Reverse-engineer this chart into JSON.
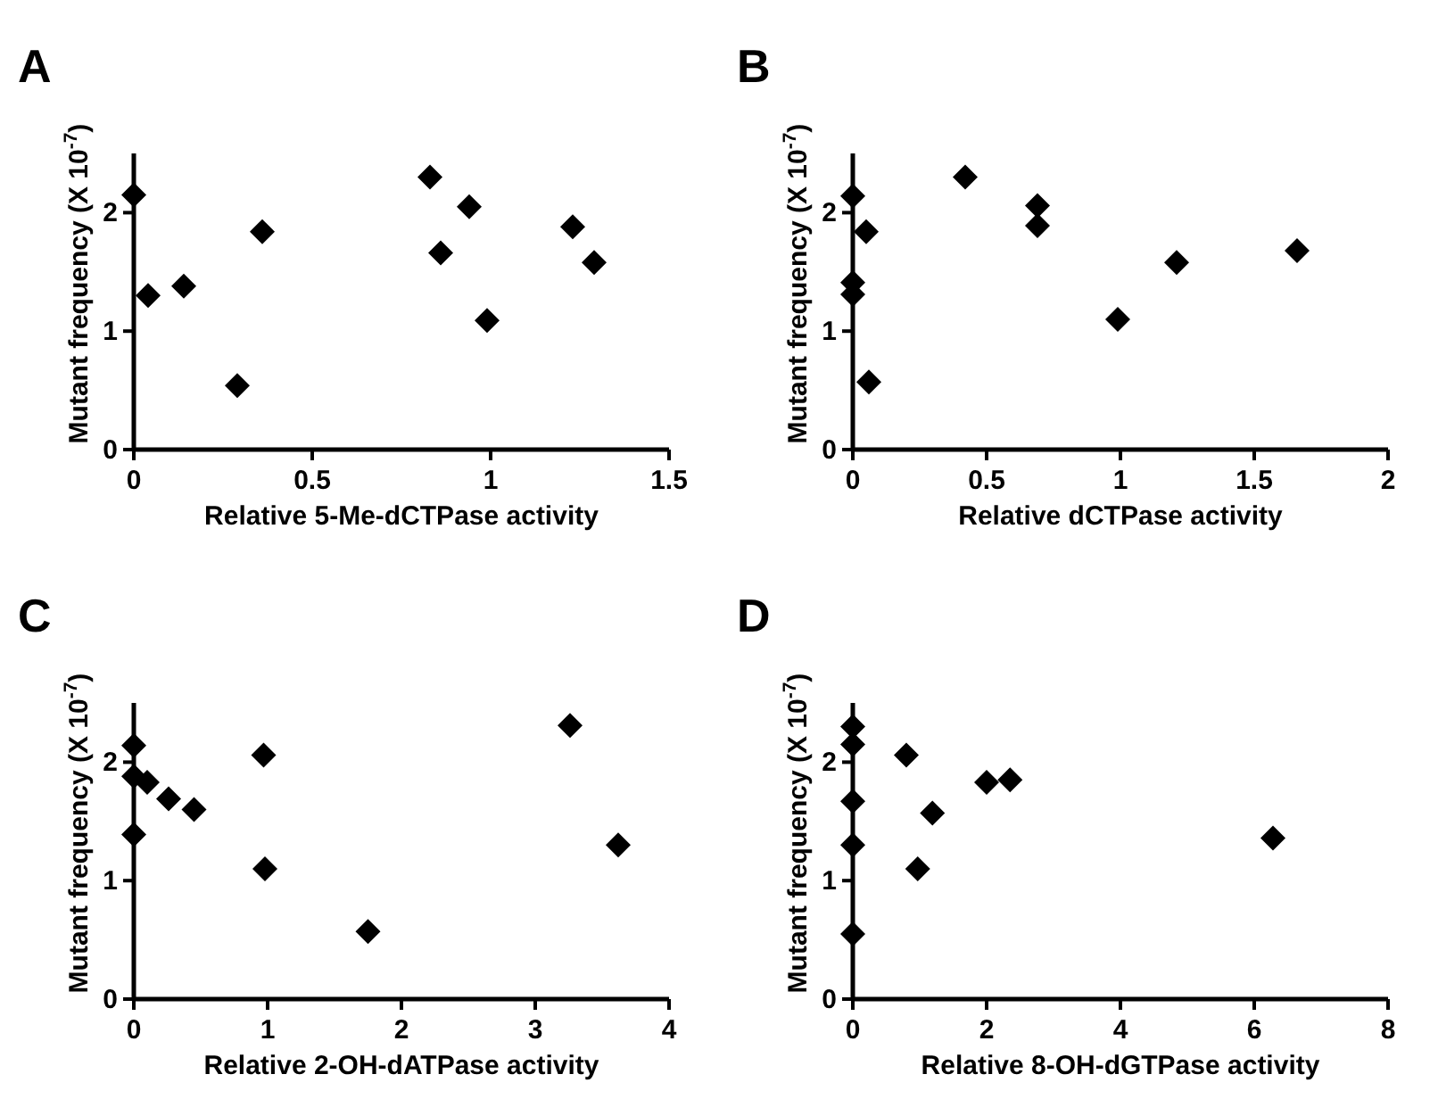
{
  "chart_data": [
    {
      "type": "scatter",
      "title": "A",
      "xlabel": "Relative 5-Me-dCTPase activity",
      "ylabel": "Mutant frequency (X 10$^{-7}$)",
      "xlim": [
        0,
        1.5
      ],
      "xticks": [
        0,
        0.5,
        1,
        1.5
      ],
      "ylim": [
        0,
        2.5
      ],
      "yticks": [
        0,
        1,
        2
      ],
      "marker": "diamond",
      "series": [
        {
          "color": "#000000",
          "x": [
            0,
            0.04,
            0.14,
            0.29,
            0.36,
            0.83,
            0.86,
            0.94,
            0.99,
            1.23,
            1.29
          ],
          "values": [
            2.15,
            1.3,
            1.38,
            0.54,
            1.84,
            2.3,
            1.66,
            2.05,
            1.09,
            1.88,
            1.58
          ]
        }
      ]
    },
    {
      "type": "scatter",
      "title": "B",
      "xlabel": "Relative dCTPase activity",
      "ylabel": "Mutant frequency (X 10$^{-7}$)",
      "xlim": [
        0,
        2
      ],
      "xticks": [
        0,
        0.5,
        1,
        1.5,
        2
      ],
      "ylim": [
        0,
        2.5
      ],
      "yticks": [
        0,
        1,
        2
      ],
      "marker": "diamond",
      "series": [
        {
          "color": "#000000",
          "x": [
            0,
            0,
            0,
            0.05,
            0.06,
            0.42,
            0.69,
            0.69,
            0.99,
            1.21,
            1.66
          ],
          "values": [
            2.14,
            1.41,
            1.31,
            1.84,
            0.57,
            2.3,
            2.06,
            1.89,
            1.1,
            1.58,
            1.68
          ]
        }
      ]
    },
    {
      "type": "scatter",
      "title": "C",
      "xlabel": "Relative 2-OH-dATPase activity",
      "ylabel": "Mutant frequency (X 10$^{-7}$)",
      "xlim": [
        0,
        4
      ],
      "xticks": [
        0,
        1,
        2,
        3,
        4
      ],
      "ylim": [
        0,
        2.5
      ],
      "yticks": [
        0,
        1,
        2
      ],
      "marker": "diamond",
      "series": [
        {
          "color": "#000000",
          "x": [
            0,
            0,
            0,
            0.1,
            0.26,
            0.45,
            0.97,
            0.98,
            1.75,
            3.26,
            3.62
          ],
          "values": [
            2.14,
            1.88,
            1.39,
            1.83,
            1.69,
            1.6,
            2.06,
            1.1,
            0.57,
            2.31,
            1.3
          ]
        }
      ]
    },
    {
      "type": "scatter",
      "title": "D",
      "xlabel": "Relative 8-OH-dGTPase activity",
      "ylabel": "Mutant frequency (X 10$^{-7}$)",
      "xlim": [
        0,
        8
      ],
      "xticks": [
        0,
        2,
        4,
        6,
        8
      ],
      "ylim": [
        0,
        2.5
      ],
      "yticks": [
        0,
        1,
        2
      ],
      "marker": "diamond",
      "series": [
        {
          "color": "#000000",
          "x": [
            0,
            0,
            0,
            0,
            0,
            0.8,
            0.97,
            1.19,
            2.0,
            2.35,
            6.28
          ],
          "values": [
            2.3,
            2.15,
            1.67,
            1.3,
            0.55,
            2.06,
            1.1,
            1.57,
            1.83,
            1.85,
            1.36
          ]
        }
      ]
    }
  ]
}
